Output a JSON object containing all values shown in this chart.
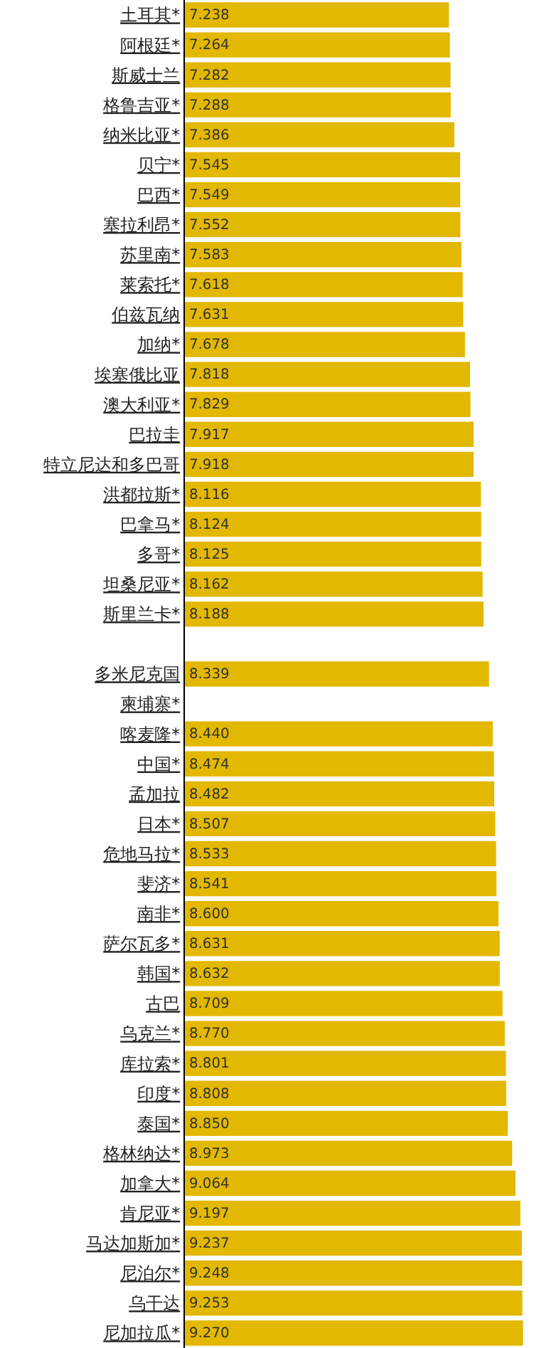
{
  "chart_data": {
    "type": "bar",
    "orientation": "horizontal",
    "categories": [
      "土耳其*",
      "阿根廷*",
      "斯威士兰",
      "格鲁吉亚*",
      "纳米比亚*",
      "贝宁*",
      "巴西*",
      "塞拉利昂*",
      "苏里南*",
      "莱索托*",
      "伯兹瓦纳",
      "加纳*",
      "埃塞俄比亚",
      "澳大利亚*",
      "巴拉圭",
      "特立尼达和多巴哥",
      "洪都拉斯*",
      "巴拿马*",
      "多哥*",
      "坦桑尼亚*",
      "斯里兰卡*",
      null,
      "多米尼克国",
      "柬埔寨*",
      "喀麦隆*",
      "中国*",
      "孟加拉",
      "日本*",
      "危地马拉*",
      "斐济*",
      "南非*",
      "萨尔瓦多*",
      "韩国*",
      "古巴",
      "乌克兰*",
      "库拉索*",
      "印度*",
      "泰国*",
      "格林纳达*",
      "加拿大*",
      "肯尼亚*",
      "马达加斯加*",
      "尼泊尔*",
      "乌干达",
      "尼加拉瓜*"
    ],
    "values": [
      7.238,
      7.264,
      7.282,
      7.288,
      7.386,
      7.545,
      7.549,
      7.552,
      7.583,
      7.618,
      7.631,
      7.678,
      7.818,
      7.829,
      7.917,
      7.918,
      8.116,
      8.124,
      8.125,
      8.162,
      8.188,
      null,
      8.339,
      null,
      8.44,
      8.474,
      8.482,
      8.507,
      8.533,
      8.541,
      8.6,
      8.631,
      8.632,
      8.709,
      8.77,
      8.801,
      8.808,
      8.85,
      8.973,
      9.064,
      9.197,
      9.237,
      9.248,
      9.253,
      9.27
    ],
    "value_labels": [
      "7.238",
      "7.264",
      "7.282",
      "7.288",
      "7.386",
      "7.545",
      "7.549",
      "7.552",
      "7.583",
      "7.618",
      "7.631",
      "7.678",
      "7.818",
      "7.829",
      "7.917",
      "7.918",
      "8.116",
      "8.124",
      "8.125",
      "8.162",
      "8.188",
      null,
      "8.339",
      null,
      "8.440",
      "8.474",
      "8.482",
      "8.507",
      "8.533",
      "8.541",
      "8.600",
      "8.631",
      "8.632",
      "8.709",
      "8.770",
      "8.801",
      "8.808",
      "8.850",
      "8.973",
      "9.064",
      "9.197",
      "9.237",
      "9.248",
      "9.253",
      "9.270"
    ],
    "color": "#e3b800"
  }
}
